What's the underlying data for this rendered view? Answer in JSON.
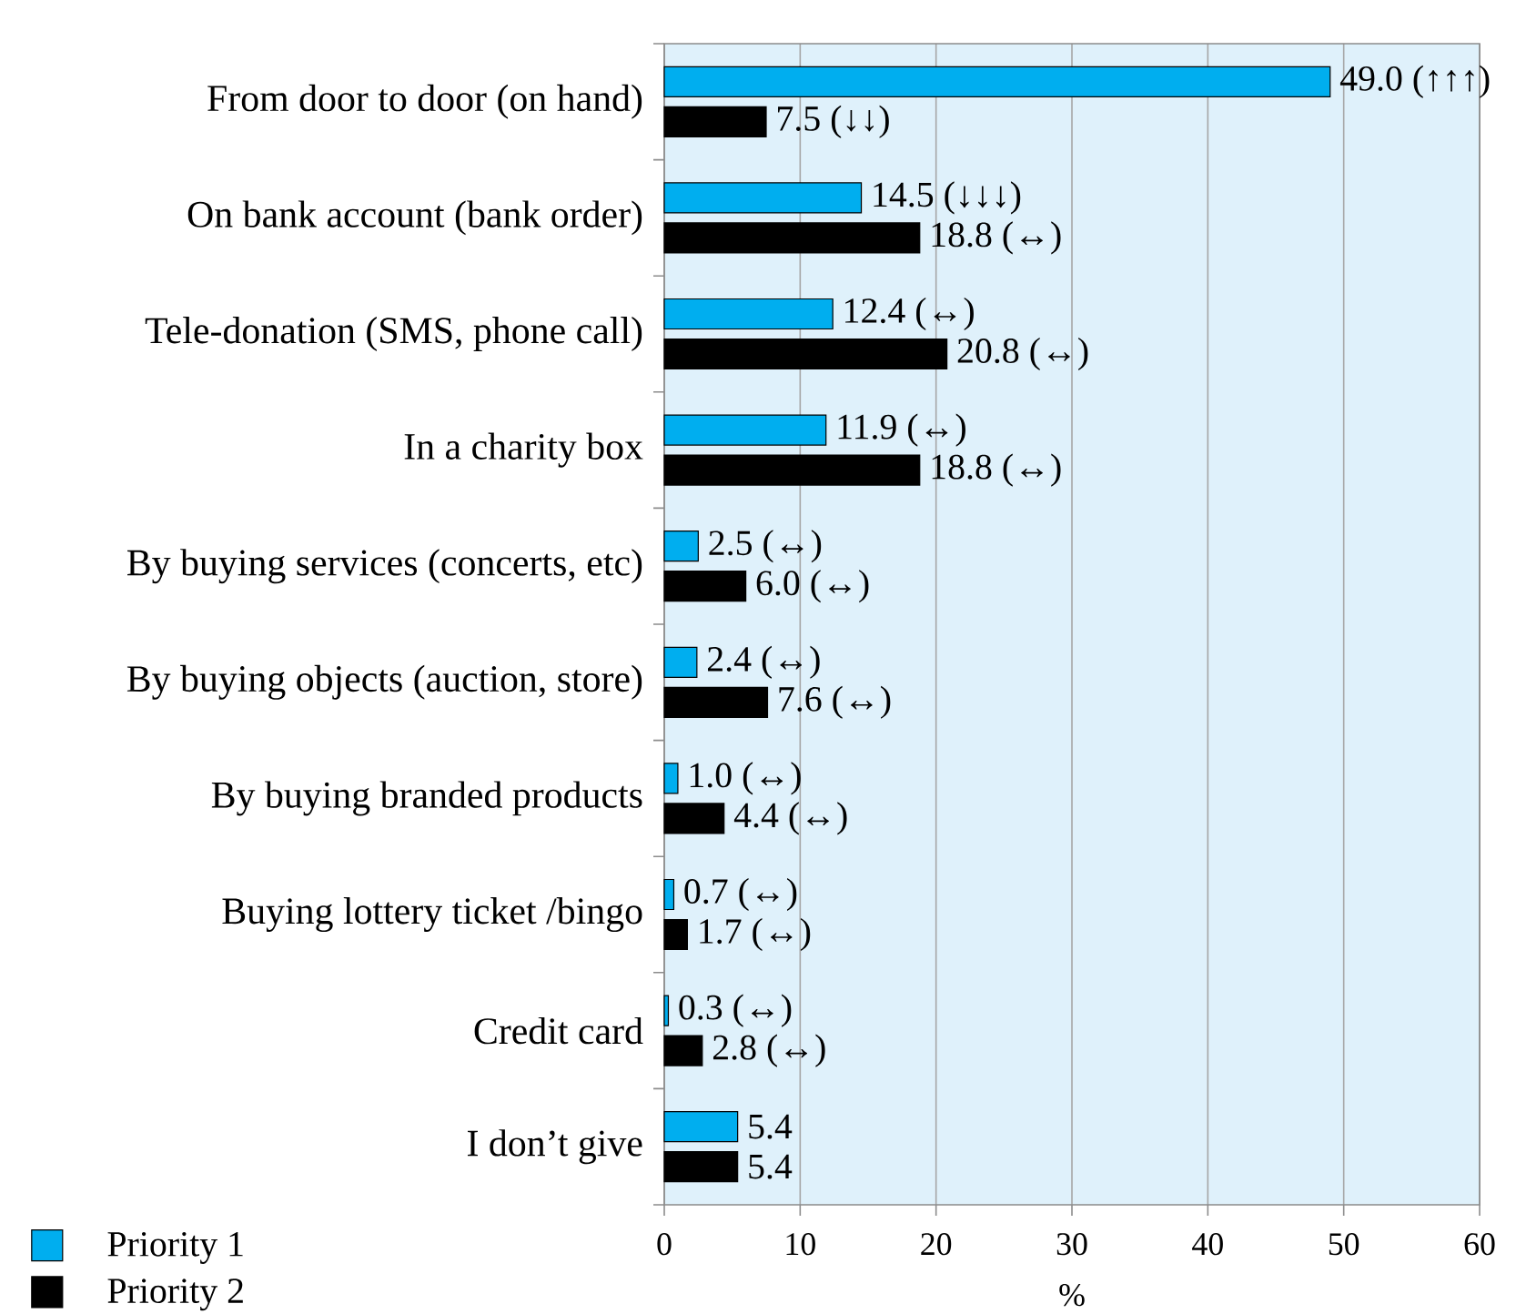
{
  "chart_data": {
    "type": "bar",
    "orientation": "horizontal",
    "categories": [
      "From door to door (on hand)",
      "On bank account (bank order)",
      "Tele-donation (SMS, phone call)",
      "In a charity box",
      "By buying services (concerts, etc)",
      "By buying objects (auction, store)",
      "By buying branded products",
      "Buying lottery ticket /bingo",
      "Credit card",
      "I don’t give"
    ],
    "series": [
      {
        "name": "Priority 1",
        "color": "#00aeef",
        "values": [
          49.0,
          14.5,
          12.4,
          11.9,
          2.5,
          2.4,
          1.0,
          0.7,
          0.3,
          5.4
        ],
        "value_labels": [
          "49.0 (↑↑↑)",
          "14.5 (↓↓↓)",
          "12.4 (↔)",
          "11.9 (↔)",
          "2.5 (↔)",
          "2.4 (↔)",
          "1.0 (↔)",
          "0.7 (↔)",
          "0.3 (↔)",
          "5.4"
        ]
      },
      {
        "name": "Priority 2",
        "color": "#000000",
        "values": [
          7.5,
          18.8,
          20.8,
          18.8,
          6.0,
          7.6,
          4.4,
          1.7,
          2.8,
          5.4
        ],
        "value_labels": [
          "7.5 (↓↓)",
          "18.8 (↔)",
          "20.8 (↔)",
          "18.8 (↔)",
          "6.0 (↔)",
          "7.6 (↔)",
          "4.4 (↔)",
          "1.7 (↔)",
          "2.8 (↔)",
          "5.4"
        ]
      }
    ],
    "xlabel": "%",
    "xlim": [
      0,
      60
    ],
    "xticks": [
      0,
      10,
      20,
      30,
      40,
      50,
      60
    ],
    "grid": "x",
    "legend": "bottom left"
  }
}
